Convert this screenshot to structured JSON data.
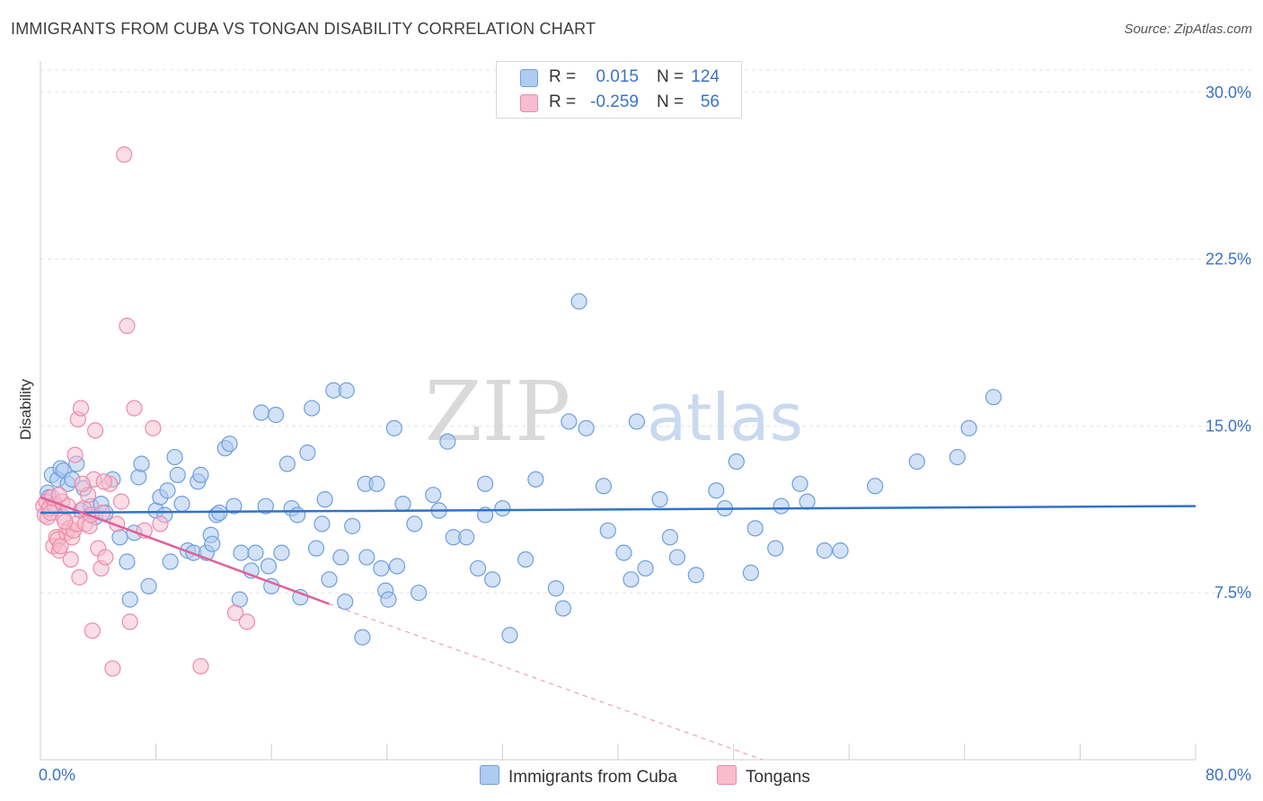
{
  "title": "IMMIGRANTS FROM CUBA VS TONGAN DISABILITY CORRELATION CHART",
  "source": "Source: ZipAtlas.com",
  "legend": {
    "r_label": "R =",
    "n_label": "N =",
    "series": [
      {
        "name": "Immigrants from Cuba",
        "r": "0.015",
        "n": "124"
      },
      {
        "name": "Tongans",
        "r": "-0.259",
        "n": "56"
      }
    ]
  },
  "colors": {
    "cuba_fill": "#aecbf0",
    "cuba_stroke": "#6f9fdc",
    "cuba_line": "#2f74c7",
    "tongan_fill": "#f7bccd",
    "tongan_stroke": "#ee8aa9",
    "tongan_line": "#e0609a",
    "grid": "#e3e3e3",
    "axis_label": "#3a72c7"
  },
  "watermark": {
    "zip": "ZIP",
    "atlas": "atlas"
  },
  "chart_data": {
    "type": "scatter",
    "title": "IMMIGRANTS FROM CUBA VS TONGAN DISABILITY CORRELATION CHART",
    "xlabel": "",
    "ylabel": "Disability",
    "xlim": [
      0,
      80
    ],
    "ylim": [
      0,
      31
    ],
    "y_ticks": [
      7.5,
      15.0,
      22.5,
      30.0
    ],
    "y_tick_labels": [
      "7.5%",
      "15.0%",
      "22.5%",
      "30.0%"
    ],
    "x_tick_labels": [
      "0.0%",
      "80.0%"
    ],
    "series": [
      {
        "name": "Immigrants from Cuba",
        "trend": {
          "x0": 0,
          "y0": 11.1,
          "x1": 80,
          "y1": 11.4
        },
        "points": [
          [
            0.5,
            12.0
          ],
          [
            0.6,
            11.8
          ],
          [
            0.8,
            12.8
          ],
          [
            1.0,
            11.5
          ],
          [
            1.2,
            12.6
          ],
          [
            1.4,
            13.1
          ],
          [
            1.6,
            13.0
          ],
          [
            1.9,
            12.4
          ],
          [
            2.2,
            12.6
          ],
          [
            2.5,
            13.3
          ],
          [
            2.8,
            11.2
          ],
          [
            3.0,
            12.2
          ],
          [
            3.5,
            11.4
          ],
          [
            3.8,
            10.9
          ],
          [
            4.2,
            11.5
          ],
          [
            4.5,
            11.1
          ],
          [
            5.0,
            12.6
          ],
          [
            5.5,
            10.0
          ],
          [
            6.0,
            8.9
          ],
          [
            6.2,
            7.2
          ],
          [
            6.5,
            10.2
          ],
          [
            6.8,
            12.7
          ],
          [
            7.0,
            13.3
          ],
          [
            7.5,
            7.8
          ],
          [
            8.0,
            11.2
          ],
          [
            8.3,
            11.8
          ],
          [
            8.6,
            11.0
          ],
          [
            8.8,
            12.1
          ],
          [
            9.0,
            8.9
          ],
          [
            9.3,
            13.6
          ],
          [
            9.5,
            12.8
          ],
          [
            9.8,
            11.5
          ],
          [
            10.2,
            9.4
          ],
          [
            10.6,
            9.3
          ],
          [
            10.9,
            12.5
          ],
          [
            11.1,
            12.8
          ],
          [
            11.5,
            9.3
          ],
          [
            11.8,
            10.1
          ],
          [
            11.9,
            9.7
          ],
          [
            12.2,
            11.0
          ],
          [
            12.4,
            11.1
          ],
          [
            12.8,
            14.0
          ],
          [
            13.1,
            14.2
          ],
          [
            13.4,
            11.4
          ],
          [
            13.8,
            7.2
          ],
          [
            13.9,
            9.3
          ],
          [
            14.6,
            8.5
          ],
          [
            14.9,
            9.3
          ],
          [
            15.3,
            15.6
          ],
          [
            15.6,
            11.4
          ],
          [
            15.8,
            8.7
          ],
          [
            16.0,
            7.8
          ],
          [
            16.3,
            15.5
          ],
          [
            16.7,
            9.3
          ],
          [
            17.1,
            13.3
          ],
          [
            17.4,
            11.3
          ],
          [
            17.8,
            11.0
          ],
          [
            18.0,
            7.3
          ],
          [
            18.5,
            13.8
          ],
          [
            18.8,
            15.8
          ],
          [
            19.1,
            9.5
          ],
          [
            19.5,
            10.6
          ],
          [
            19.7,
            11.7
          ],
          [
            20.0,
            8.1
          ],
          [
            20.3,
            16.6
          ],
          [
            20.8,
            9.1
          ],
          [
            21.1,
            7.1
          ],
          [
            21.2,
            16.6
          ],
          [
            21.6,
            10.5
          ],
          [
            22.3,
            5.5
          ],
          [
            22.5,
            12.4
          ],
          [
            22.6,
            9.1
          ],
          [
            23.3,
            12.4
          ],
          [
            23.6,
            8.6
          ],
          [
            23.9,
            7.6
          ],
          [
            24.1,
            7.2
          ],
          [
            24.5,
            14.9
          ],
          [
            24.7,
            8.7
          ],
          [
            25.1,
            11.5
          ],
          [
            25.9,
            10.6
          ],
          [
            26.2,
            7.5
          ],
          [
            27.2,
            11.9
          ],
          [
            27.6,
            11.2
          ],
          [
            28.2,
            14.3
          ],
          [
            28.6,
            10.0
          ],
          [
            29.5,
            10.0
          ],
          [
            30.3,
            8.6
          ],
          [
            30.8,
            11.0
          ],
          [
            30.8,
            12.4
          ],
          [
            31.3,
            8.1
          ],
          [
            32.0,
            11.3
          ],
          [
            32.5,
            5.6
          ],
          [
            33.6,
            9.0
          ],
          [
            34.3,
            12.6
          ],
          [
            35.7,
            7.7
          ],
          [
            36.2,
            6.8
          ],
          [
            36.6,
            15.2
          ],
          [
            37.3,
            20.6
          ],
          [
            37.8,
            14.9
          ],
          [
            39.0,
            12.3
          ],
          [
            39.3,
            10.3
          ],
          [
            40.4,
            9.3
          ],
          [
            40.9,
            8.1
          ],
          [
            41.3,
            15.2
          ],
          [
            41.9,
            8.6
          ],
          [
            42.9,
            11.7
          ],
          [
            43.6,
            10.0
          ],
          [
            44.1,
            9.1
          ],
          [
            45.4,
            8.3
          ],
          [
            46.8,
            12.1
          ],
          [
            47.4,
            11.3
          ],
          [
            48.2,
            13.4
          ],
          [
            49.2,
            8.4
          ],
          [
            49.5,
            10.4
          ],
          [
            50.9,
            9.5
          ],
          [
            51.3,
            11.4
          ],
          [
            52.6,
            12.4
          ],
          [
            53.1,
            11.6
          ],
          [
            54.3,
            9.4
          ],
          [
            55.4,
            9.4
          ],
          [
            57.8,
            12.3
          ],
          [
            60.7,
            13.4
          ],
          [
            63.5,
            13.6
          ],
          [
            64.3,
            14.9
          ],
          [
            66.0,
            16.3
          ]
        ]
      },
      {
        "name": "Tongans",
        "trend": {
          "x0": 0,
          "y0": 11.8,
          "x1": 20,
          "y1": 7.0
        },
        "trend_extension": {
          "x0": 20,
          "y0": 7.0,
          "x1": 50,
          "y1": 0
        },
        "points": [
          [
            0.2,
            11.4
          ],
          [
            0.3,
            11.0
          ],
          [
            0.4,
            11.6
          ],
          [
            0.5,
            10.9
          ],
          [
            0.6,
            11.3
          ],
          [
            0.8,
            11.8
          ],
          [
            0.9,
            9.6
          ],
          [
            1.0,
            11.4
          ],
          [
            1.1,
            10.0
          ],
          [
            1.2,
            9.9
          ],
          [
            1.3,
            9.4
          ],
          [
            1.4,
            9.6
          ],
          [
            1.5,
            11.6
          ],
          [
            1.6,
            10.9
          ],
          [
            1.8,
            10.2
          ],
          [
            1.9,
            11.4
          ],
          [
            2.0,
            10.4
          ],
          [
            2.1,
            9.0
          ],
          [
            2.2,
            10.0
          ],
          [
            2.3,
            10.3
          ],
          [
            2.4,
            13.7
          ],
          [
            2.5,
            10.6
          ],
          [
            2.6,
            15.3
          ],
          [
            2.7,
            8.2
          ],
          [
            2.8,
            15.8
          ],
          [
            3.0,
            11.3
          ],
          [
            3.1,
            10.6
          ],
          [
            3.3,
            11.9
          ],
          [
            3.4,
            10.5
          ],
          [
            3.5,
            11.0
          ],
          [
            3.6,
            5.8
          ],
          [
            3.7,
            12.6
          ],
          [
            3.8,
            14.8
          ],
          [
            4.0,
            9.5
          ],
          [
            4.2,
            8.6
          ],
          [
            4.3,
            11.1
          ],
          [
            4.5,
            9.1
          ],
          [
            4.8,
            12.4
          ],
          [
            5.0,
            4.1
          ],
          [
            5.3,
            10.6
          ],
          [
            5.6,
            11.6
          ],
          [
            5.8,
            27.2
          ],
          [
            6.0,
            19.5
          ],
          [
            6.2,
            6.2
          ],
          [
            6.5,
            15.8
          ],
          [
            7.2,
            10.3
          ],
          [
            7.8,
            14.9
          ],
          [
            8.3,
            10.6
          ],
          [
            11.1,
            4.2
          ],
          [
            13.5,
            6.6
          ],
          [
            14.3,
            6.2
          ],
          [
            4.4,
            12.5
          ],
          [
            2.9,
            12.4
          ],
          [
            1.7,
            10.7
          ],
          [
            0.7,
            11.1
          ],
          [
            1.3,
            11.9
          ]
        ]
      }
    ]
  }
}
